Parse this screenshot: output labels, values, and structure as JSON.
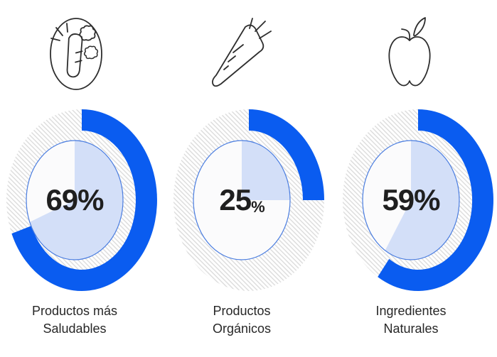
{
  "chart_data": {
    "type": "pie",
    "style": "donut",
    "start_angle": "top",
    "direction": "clockwise",
    "remainder_style": "diagonal-hatch",
    "legend": "none",
    "unit": "%",
    "items": [
      {
        "icon": "vegetables-icon",
        "label_lines": [
          "Productos más",
          "Saludables"
        ],
        "value": 69,
        "value_text": "69",
        "suffix": "%",
        "suffix_small": false
      },
      {
        "icon": "carrot-icon",
        "label_lines": [
          "Productos",
          "Orgánicos"
        ],
        "value": 25,
        "value_text": "25",
        "suffix": "%",
        "suffix_small": true
      },
      {
        "icon": "apple-icon",
        "label_lines": [
          "Ingredientes",
          "Naturales"
        ],
        "value": 59,
        "value_text": "59",
        "suffix": "%",
        "suffix_small": false
      }
    ],
    "colors": {
      "fill_blue": "#0A5CF0",
      "inner_wedge": "#D3DFF8",
      "inner_circle_fill": "#FBFBFC",
      "inner_circle_border": "#4A7DE0",
      "hatch_line": "#D9D9D9",
      "value_text": "#1F1F1F",
      "label_text": "#272727",
      "background": "#FFFFFF"
    }
  }
}
